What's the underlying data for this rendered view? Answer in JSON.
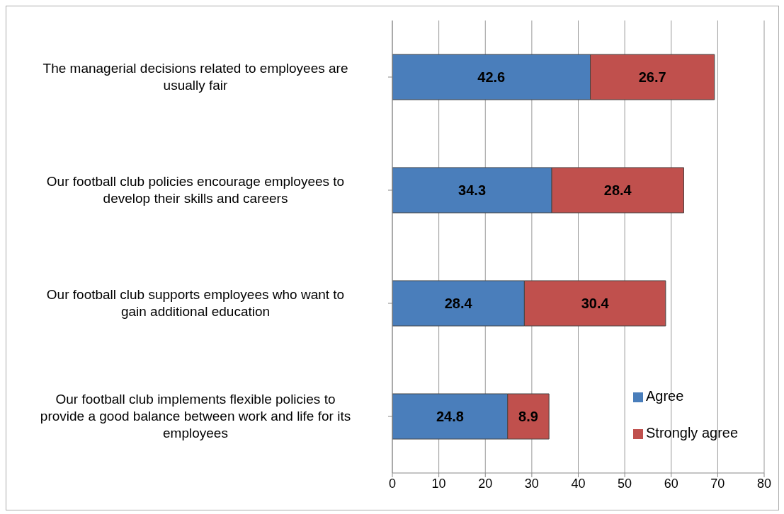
{
  "chart_data": {
    "type": "bar",
    "orientation": "horizontal",
    "stacked": true,
    "categories": [
      "The managerial decisions related to employees are usually fair",
      "Our football club policies encourage employees to develop their skills and careers",
      "Our football club supports employees who want to gain additional education",
      "Our football club implements flexible policies to provide a good balance between work and life for its employees"
    ],
    "series": [
      {
        "name": "Agree",
        "color": "#4a7ebb",
        "values": [
          42.6,
          34.3,
          28.4,
          24.8
        ]
      },
      {
        "name": "Strongly agree",
        "color": "#c0504d",
        "values": [
          26.7,
          28.4,
          30.4,
          8.9
        ]
      }
    ],
    "xlim": [
      0,
      80
    ],
    "xticks": [
      0,
      10,
      20,
      30,
      40,
      50,
      60,
      70,
      80
    ],
    "grid": "x",
    "legend": "bottom right",
    "data_labels": true
  }
}
